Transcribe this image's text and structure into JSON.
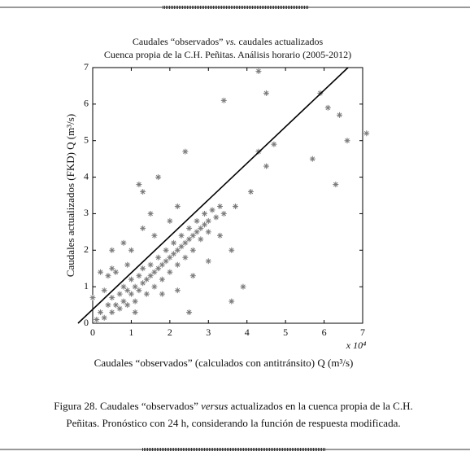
{
  "chart_data": {
    "type": "scatter",
    "title": [
      "Caudales “observados” ",
      "vs.",
      " caudales actualizados"
    ],
    "subtitle": "Cuenca propia de la C.H. Peñitas. Análisis horario (2005-2012)",
    "x_label": "Caudales “observados” (calculados con antitránsito) Q (m³/s)",
    "y_label": "Caudales actualizados (FKD) Q (m³/s)",
    "x_multiplier": "x 10⁴",
    "xlim": [
      0,
      7
    ],
    "ylim": [
      0,
      7
    ],
    "xticks": [
      0,
      1,
      2,
      3,
      4,
      5,
      6,
      7
    ],
    "yticks": [
      0,
      1,
      2,
      3,
      4,
      5,
      6,
      7
    ],
    "color": "#7a7a7a",
    "line": {
      "x": [
        -0.38,
        6.62
      ],
      "y": [
        0,
        7
      ],
      "color": "#000000"
    },
    "x": [
      0.1,
      0.2,
      0.3,
      0.4,
      0.5,
      0.5,
      0.6,
      0.7,
      0.7,
      0.8,
      0.8,
      0.9,
      0.9,
      1.0,
      1.0,
      1.1,
      1.1,
      1.2,
      1.2,
      1.3,
      1.3,
      1.4,
      1.4,
      1.5,
      1.5,
      1.6,
      1.6,
      1.7,
      1.7,
      1.8,
      1.8,
      1.9,
      1.9,
      2.0,
      2.0,
      2.1,
      2.1,
      2.2,
      2.2,
      2.3,
      2.3,
      2.4,
      2.4,
      2.5,
      2.5,
      2.6,
      2.6,
      2.7,
      2.7,
      2.8,
      2.8,
      2.9,
      2.9,
      3.0,
      3.0,
      3.1,
      3.2,
      3.3,
      3.4,
      1.0,
      1.3,
      0.9,
      1.6,
      2.0,
      0.6,
      1.1,
      1.8,
      2.2,
      2.6,
      3.0,
      0.3,
      0.5,
      2.2,
      1.5,
      0.8,
      4.3,
      4.5,
      3.4,
      5.9,
      6.1,
      6.4,
      7.1,
      6.6,
      6.3,
      5.7,
      4.5,
      4.3,
      4.7,
      2.4,
      1.7,
      1.3,
      4.1,
      3.7,
      3.3,
      3.6,
      3.9,
      3.6,
      2.5,
      1.2,
      0.5,
      0.4,
      0.2,
      0.0
    ],
    "y": [
      0.1,
      0.3,
      0.15,
      0.5,
      0.3,
      0.7,
      0.5,
      0.8,
      0.4,
      1.0,
      0.6,
      0.9,
      0.5,
      1.2,
      0.8,
      1.0,
      0.6,
      1.3,
      0.9,
      1.5,
      1.1,
      1.2,
      0.8,
      1.6,
      1.3,
      1.4,
      1.0,
      1.8,
      1.5,
      1.6,
      1.2,
      2.0,
      1.7,
      1.8,
      1.4,
      2.2,
      1.9,
      2.0,
      1.6,
      2.4,
      2.1,
      2.2,
      1.8,
      2.6,
      2.3,
      2.4,
      2.0,
      2.8,
      2.5,
      2.6,
      2.3,
      3.0,
      2.7,
      2.8,
      2.5,
      3.1,
      2.9,
      3.2,
      3.0,
      2.0,
      2.6,
      1.6,
      2.4,
      2.8,
      1.4,
      0.3,
      0.8,
      0.9,
      1.3,
      1.7,
      0.9,
      1.5,
      3.2,
      3.0,
      2.2,
      6.9,
      6.3,
      6.1,
      6.3,
      5.9,
      5.7,
      5.2,
      5.0,
      3.8,
      4.5,
      4.3,
      4.7,
      4.9,
      4.7,
      4.0,
      3.6,
      3.6,
      3.2,
      2.4,
      2.0,
      1.0,
      0.6,
      0.3,
      3.8,
      2.0,
      1.3,
      1.4,
      0.7
    ]
  },
  "caption": {
    "line1": [
      "Figura 28. Caudales “observados” ",
      "versus",
      " actualizados en la cuenca propia de la C.H."
    ],
    "line2": "Peñitas. Pronóstico con 24 h, considerando la función de respuesta modificada."
  }
}
